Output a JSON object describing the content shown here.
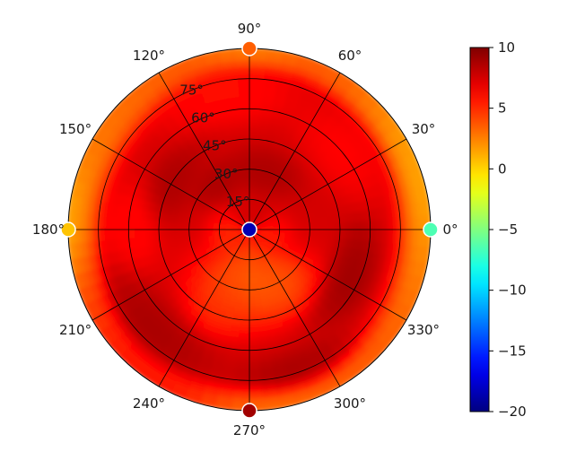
{
  "chart_data": {
    "type": "heatmap",
    "projection": "polar",
    "title": "",
    "angular_ticks": [
      {
        "deg": 0,
        "label": "0°"
      },
      {
        "deg": 30,
        "label": "30°"
      },
      {
        "deg": 60,
        "label": "60°"
      },
      {
        "deg": 90,
        "label": "90°"
      },
      {
        "deg": 120,
        "label": "120°"
      },
      {
        "deg": 150,
        "label": "150°"
      },
      {
        "deg": 180,
        "label": "180°"
      },
      {
        "deg": 210,
        "label": "210°"
      },
      {
        "deg": 240,
        "label": "240°"
      },
      {
        "deg": 270,
        "label": "270°"
      },
      {
        "deg": 300,
        "label": "300°"
      },
      {
        "deg": 330,
        "label": "330°"
      }
    ],
    "radial_ticks": [
      {
        "value": 15,
        "label": "15°"
      },
      {
        "value": 30,
        "label": "30°"
      },
      {
        "value": 45,
        "label": "45°"
      },
      {
        "value": 60,
        "label": "60°"
      },
      {
        "value": 75,
        "label": "75°"
      }
    ],
    "rlim": [
      0,
      90
    ],
    "radial_label_angle_deg": 112.5,
    "colormap": "jet",
    "color_range": [
      -20,
      10
    ],
    "colorbar_ticks": [
      {
        "value": 10,
        "label": "10"
      },
      {
        "value": 5,
        "label": "5"
      },
      {
        "value": 0,
        "label": "0"
      },
      {
        "value": -5,
        "label": "−5"
      },
      {
        "value": -10,
        "label": "−10"
      },
      {
        "value": -15,
        "label": "−15"
      },
      {
        "value": -20,
        "label": "−20"
      }
    ],
    "grid": true,
    "field": {
      "background": 7.5,
      "patches": [
        {
          "theta": 0,
          "r": 88,
          "value": 0.5,
          "spread_r": 7,
          "spread_theta": 30
        },
        {
          "theta": 25,
          "r": 88,
          "value": 0,
          "spread_r": 5,
          "spread_theta": 18
        },
        {
          "theta": 55,
          "r": 87,
          "value": 3,
          "spread_r": 4,
          "spread_theta": 20
        },
        {
          "theta": 90,
          "r": 90,
          "value": 1,
          "spread_r": 5,
          "spread_theta": 12
        },
        {
          "theta": 130,
          "r": 88,
          "value": 3,
          "spread_r": 5,
          "spread_theta": 25
        },
        {
          "theta": 160,
          "r": 87,
          "value": 1,
          "spread_r": 7,
          "spread_theta": 28
        },
        {
          "theta": 180,
          "r": 90,
          "value": -1,
          "spread_r": 5,
          "spread_theta": 12
        },
        {
          "theta": 200,
          "r": 86,
          "value": 4,
          "spread_r": 4,
          "spread_theta": 15
        },
        {
          "theta": 230,
          "r": 85,
          "value": 5,
          "spread_r": 4,
          "spread_theta": 18
        },
        {
          "theta": 282,
          "r": 88,
          "value": 1.5,
          "spread_r": 5,
          "spread_theta": 18
        },
        {
          "theta": 315,
          "r": 88,
          "value": 3.5,
          "spread_r": 4,
          "spread_theta": 22
        },
        {
          "theta": 270,
          "r": 25,
          "value": 2.5,
          "spread_r": 12,
          "spread_theta": 30
        },
        {
          "theta": 250,
          "r": 40,
          "value": 4.5,
          "spread_r": 8,
          "spread_theta": 12
        },
        {
          "theta": 300,
          "r": 32,
          "value": 3.5,
          "spread_r": 8,
          "spread_theta": 15
        },
        {
          "theta": 200,
          "r": 10,
          "value": 4.5,
          "spread_r": 6,
          "spread_theta": 30
        },
        {
          "theta": 340,
          "r": 10,
          "value": 5,
          "spread_r": 6,
          "spread_theta": 25
        },
        {
          "theta": 100,
          "r": 68,
          "value": 5.5,
          "spread_r": 8,
          "spread_theta": 15
        },
        {
          "theta": 180,
          "r": 58,
          "value": 5.5,
          "spread_r": 8,
          "spread_theta": 12
        },
        {
          "theta": 40,
          "r": 60,
          "value": 5.8,
          "spread_r": 8,
          "spread_theta": 14
        },
        {
          "theta": 335,
          "r": 55,
          "value": 9.5,
          "spread_r": 6,
          "spread_theta": 15
        },
        {
          "theta": 225,
          "r": 70,
          "value": 9.2,
          "spread_r": 8,
          "spread_theta": 15
        },
        {
          "theta": 290,
          "r": 75,
          "value": 9.2,
          "spread_r": 6,
          "spread_theta": 12
        },
        {
          "theta": 150,
          "r": 45,
          "value": 9,
          "spread_r": 6,
          "spread_theta": 15
        },
        {
          "theta": 75,
          "r": 30,
          "value": 9,
          "spread_r": 6,
          "spread_theta": 18
        },
        {
          "theta": 125,
          "r": 28,
          "value": 9,
          "spread_r": 5,
          "spread_theta": 15
        }
      ]
    },
    "markers": [
      {
        "theta": 0,
        "r": 0,
        "value": -18.5
      },
      {
        "theta": 0,
        "r": 90,
        "value": -6.5
      },
      {
        "theta": 90,
        "r": 90,
        "value": 3.5
      },
      {
        "theta": 180,
        "r": 90,
        "value": 0.5
      },
      {
        "theta": 270,
        "r": 90,
        "value": 9
      }
    ]
  }
}
